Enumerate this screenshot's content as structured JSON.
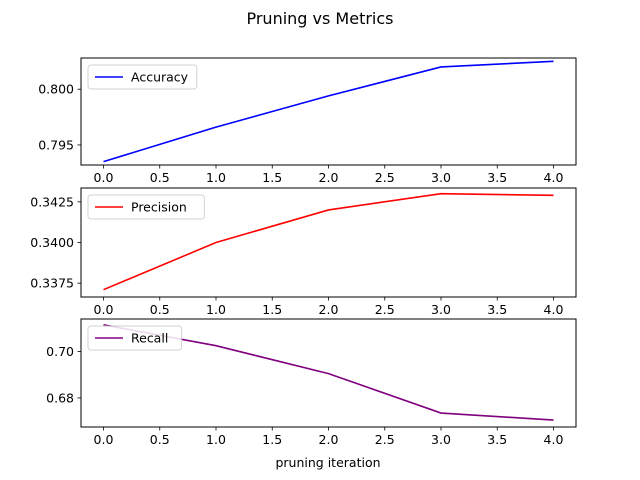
{
  "chart_data": {
    "type": "line",
    "title": "Pruning vs Metrics",
    "xlabel": "pruning iteration",
    "x": [
      0,
      1,
      2,
      3,
      4
    ],
    "xlim": [
      -0.2,
      4.2
    ],
    "xticks": [
      0.0,
      0.5,
      1.0,
      1.5,
      2.0,
      2.5,
      3.0,
      3.5,
      4.0
    ],
    "legend_position": "upper-left",
    "panels": [
      {
        "name": "Accuracy",
        "color": "#0000ff",
        "values": [
          0.7935,
          0.7966,
          0.7994,
          0.802,
          0.8025
        ],
        "ylim": [
          0.7932,
          0.8028
        ],
        "yticks": [
          0.795,
          0.8
        ],
        "tick_decimals": 3
      },
      {
        "name": "Precision",
        "color": "#ff0000",
        "values": [
          0.3371,
          0.34,
          0.342,
          0.343,
          0.3429
        ],
        "ylim": [
          0.33665,
          0.34335
        ],
        "yticks": [
          0.3375,
          0.34,
          0.3425
        ],
        "tick_decimals": 4
      },
      {
        "name": "Recall",
        "color": "#800080",
        "values": [
          0.7115,
          0.7025,
          0.6905,
          0.6735,
          0.6705
        ],
        "ylim": [
          0.6675,
          0.714
        ],
        "yticks": [
          0.68,
          0.7
        ],
        "tick_decimals": 2
      }
    ]
  }
}
